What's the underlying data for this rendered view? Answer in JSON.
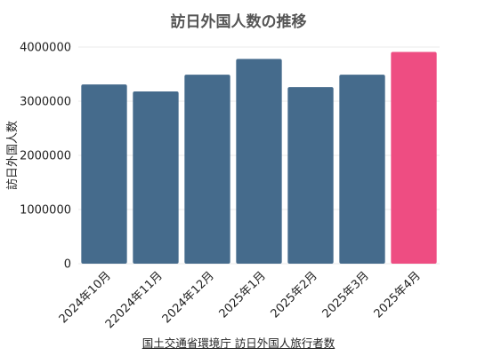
{
  "chart_data": {
    "type": "bar",
    "title": "訪日外国人数の推移",
    "ylabel": "訪日外国人数",
    "xlabel": "",
    "categories": [
      "2024年10月",
      "22024年11月",
      "2024年12月",
      "2025年1月",
      "2025年2月",
      "2025年3月",
      "2025年4月"
    ],
    "values": [
      3310000,
      3180000,
      3490000,
      3780000,
      3260000,
      3490000,
      3910000
    ],
    "ylim": [
      0,
      4000000
    ],
    "yticks": [
      "0",
      "1000000",
      "2000000",
      "3000000",
      "4000000"
    ],
    "grid": "horizontal",
    "bar_colors": [
      "#456b8c",
      "#456b8c",
      "#456b8c",
      "#456b8c",
      "#456b8c",
      "#456b8c",
      "#ee4d82"
    ]
  },
  "source": {
    "label": "国土交通省環境庁 訪日外国人旅行者数"
  }
}
